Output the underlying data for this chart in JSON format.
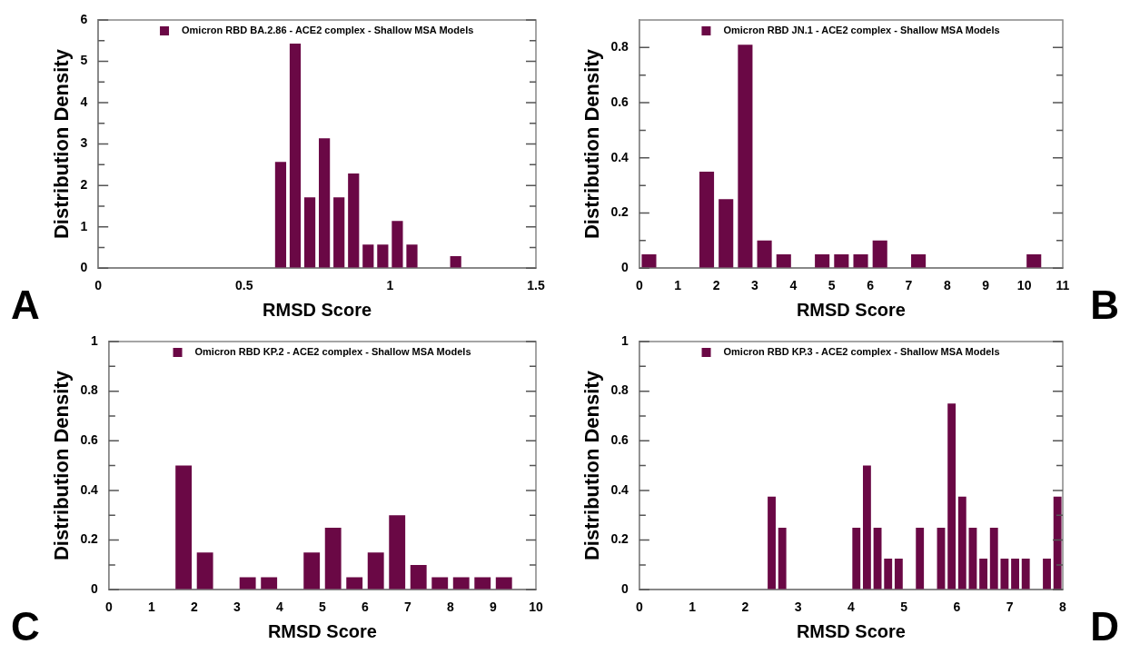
{
  "chart_data": [
    {
      "type": "histogram",
      "xlabel": "RMSD Score",
      "ylabel": "Distribution Density",
      "legend": "top",
      "annotations": [
        "A"
      ],
      "bins": [
        0.6,
        0.65,
        0.7,
        0.75,
        0.8,
        0.85,
        0.9,
        0.95,
        1.0,
        1.05,
        1.1,
        1.15,
        1.2,
        1.25
      ],
      "series": [
        {
          "name": "Omicron RBD BA.2.86 - ACE2 complex - Shallow MSA Models",
          "color": "#6a0845",
          "values": [
            2.57,
            5.43,
            1.71,
            3.14,
            1.71,
            2.29,
            0.57,
            0.57,
            1.14,
            0.57,
            0,
            0,
            0.29
          ]
        }
      ],
      "xlim": [
        0,
        1.5
      ],
      "xticks": [
        0,
        0.5,
        1,
        1.5
      ],
      "ylim": [
        0,
        6
      ],
      "yticks": [
        0,
        {
          "value": 0.5,
          "label": null
        },
        1,
        {
          "value": 1.5,
          "label": null
        },
        2,
        {
          "value": 2.5,
          "label": null
        },
        3,
        {
          "value": 3.5,
          "label": null
        },
        4,
        {
          "value": 4.5,
          "label": null
        },
        5,
        {
          "value": 5.5,
          "label": null
        },
        6
      ]
    },
    {
      "type": "histogram",
      "xlabel": "RMSD Score",
      "ylabel": "Distribution Density",
      "legend": "top",
      "annotations": [
        "B"
      ],
      "bins": [
        0,
        0.5,
        1,
        1.5,
        2,
        2.5,
        3,
        3.5,
        4,
        4.5,
        5,
        5.5,
        6,
        6.5,
        7,
        7.5,
        8,
        8.5,
        9,
        9.5,
        10,
        10.5
      ],
      "series": [
        {
          "name": "Omicron RBD JN.1 - ACE2 complex - Shallow MSA Models",
          "color": "#6a0845",
          "values": [
            0.05,
            0,
            0,
            0.35,
            0.25,
            0.81,
            0.1,
            0.05,
            0,
            0.05,
            0.05,
            0.05,
            0.1,
            0,
            0.05,
            0,
            0,
            0,
            0,
            0,
            0.05
          ]
        }
      ],
      "xlim": [
        0,
        11
      ],
      "xticks": [
        0,
        1,
        2,
        3,
        4,
        5,
        6,
        7,
        8,
        9,
        10,
        11
      ],
      "ylim": [
        0,
        0.9
      ],
      "yticks": [
        0,
        {
          "value": 0.1,
          "label": null
        },
        0.2,
        {
          "value": 0.3,
          "label": null
        },
        0.4,
        {
          "value": 0.5,
          "label": null
        },
        0.6,
        {
          "value": 0.7,
          "label": null
        },
        0.8
      ]
    },
    {
      "type": "histogram",
      "xlabel": "RMSD Score",
      "ylabel": "Distribution Density",
      "legend": "top",
      "annotations": [
        "C"
      ],
      "bins": [
        1.5,
        2,
        2.5,
        3,
        3.5,
        4,
        4.5,
        5,
        5.5,
        6,
        6.5,
        7,
        7.5,
        8,
        8.5,
        9,
        9.5
      ],
      "series": [
        {
          "name": "Omicron RBD KP.2 - ACE2 complex - Shallow MSA Models",
          "color": "#6a0845",
          "values": [
            0.5,
            0.15,
            0,
            0.05,
            0.05,
            0,
            0.15,
            0.25,
            0.05,
            0.15,
            0.3,
            0.1,
            0.05,
            0.05,
            0.05,
            0.05
          ]
        }
      ],
      "xlim": [
        0,
        10
      ],
      "xticks": [
        0,
        1,
        2,
        3,
        4,
        5,
        6,
        7,
        8,
        9,
        10
      ],
      "ylim": [
        0,
        1
      ],
      "yticks": [
        0,
        {
          "value": 0.1,
          "label": null
        },
        0.2,
        {
          "value": 0.3,
          "label": null
        },
        0.4,
        {
          "value": 0.5,
          "label": null
        },
        0.6,
        {
          "value": 0.7,
          "label": null
        },
        0.8,
        {
          "value": 0.9,
          "label": null
        },
        1
      ]
    },
    {
      "type": "histogram",
      "xlabel": "RMSD Score",
      "ylabel": "Distribution Density",
      "legend": "top",
      "annotations": [
        "D"
      ],
      "bins": [
        2.4,
        2.6,
        2.8,
        3.0,
        3.2,
        3.4,
        3.6,
        3.8,
        4.0,
        4.2,
        4.4,
        4.6,
        4.8,
        5.0,
        5.2,
        5.4,
        5.6,
        5.8,
        6.0,
        6.2,
        6.4,
        6.6,
        6.8,
        7.0,
        7.2,
        7.4,
        7.6,
        7.8,
        8.0
      ],
      "series": [
        {
          "name": "Omicron RBD KP.3 - ACE2 complex - Shallow MSA Models",
          "color": "#6a0845",
          "values": [
            0.375,
            0.25,
            0,
            0,
            0,
            0,
            0,
            0,
            0.25,
            0.5,
            0.25,
            0.125,
            0.125,
            0,
            0.25,
            0,
            0.25,
            0.75,
            0.375,
            0.25,
            0.125,
            0.25,
            0.125,
            0.125,
            0.125,
            0,
            0.125,
            0.375
          ]
        }
      ],
      "xlim": [
        0,
        8
      ],
      "xticks": [
        0,
        1,
        2,
        3,
        4,
        5,
        6,
        7,
        8
      ],
      "ylim": [
        0,
        1
      ],
      "yticks": [
        0,
        {
          "value": 0.1,
          "label": null
        },
        0.2,
        {
          "value": 0.3,
          "label": null
        },
        0.4,
        {
          "value": 0.5,
          "label": null
        },
        0.6,
        {
          "value": 0.7,
          "label": null
        },
        0.8,
        {
          "value": 0.9,
          "label": null
        },
        1
      ]
    }
  ]
}
